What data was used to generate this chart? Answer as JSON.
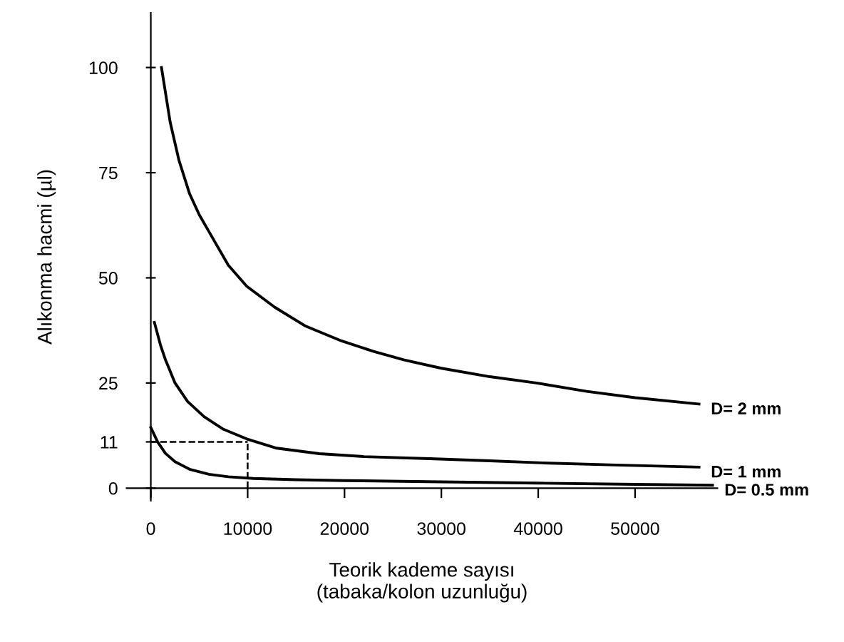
{
  "chart_data": {
    "type": "line",
    "xlabel": "Teorik kademe sayısı\n(tabaka/kolon uzunluğu)",
    "ylabel": "Alıkonma hacmi (µl)",
    "xlim": [
      -2500,
      58500
    ],
    "ylim": [
      -3,
      113
    ],
    "xticks": [
      0,
      10000,
      20000,
      30000,
      40000,
      50000
    ],
    "yticks": [
      0,
      {
        "value": 11,
        "label": "11"
      },
      25,
      50,
      75,
      100
    ],
    "grid": false,
    "marker": "none",
    "line_style": "solid",
    "ref_lines": [
      {
        "axis": "y",
        "value": 11,
        "label": null,
        "color": "#000000",
        "line_style": "dashed"
      },
      {
        "axis": "x",
        "value": 10000,
        "label": null,
        "color": "#000000",
        "line_style": "dashed"
      }
    ],
    "series": [
      {
        "name": "D= 2 mm",
        "color": "#000000",
        "x": [
          1100,
          2000,
          2900,
          4000,
          5000,
          6000,
          8000,
          9900,
          12800,
          16000,
          19700,
          23000,
          26100,
          30000,
          35000,
          39800,
          45000,
          50000,
          56600
        ],
        "values": [
          100,
          87,
          78,
          70,
          65,
          61,
          53,
          48,
          43,
          38.5,
          35,
          32.5,
          30.5,
          28.5,
          26.5,
          25,
          23,
          21.5,
          20
        ]
      },
      {
        "name": "D= 1 mm",
        "color": "#000000",
        "x": [
          370,
          1000,
          1500,
          2500,
          3800,
          5500,
          7500,
          9900,
          13000,
          17400,
          22000,
          28800,
          35000,
          40400,
          48000,
          56600
        ],
        "values": [
          39.4,
          34,
          30.6,
          25,
          20.6,
          17,
          14,
          11.7,
          9.5,
          8.2,
          7.5,
          7,
          6.5,
          6,
          5.5,
          5
        ]
      },
      {
        "name": "D= 0.5 mm",
        "color": "#000000",
        "x": [
          0,
          700,
          1500,
          2500,
          4000,
          6000,
          8000,
          10600,
          15000,
          20000,
          30000,
          40000,
          50000,
          58000
        ],
        "values": [
          14.4,
          11,
          8.3,
          6.3,
          4.5,
          3.3,
          2.7,
          2.3,
          2,
          1.8,
          1.5,
          1.2,
          0.9,
          0.7
        ]
      }
    ]
  }
}
